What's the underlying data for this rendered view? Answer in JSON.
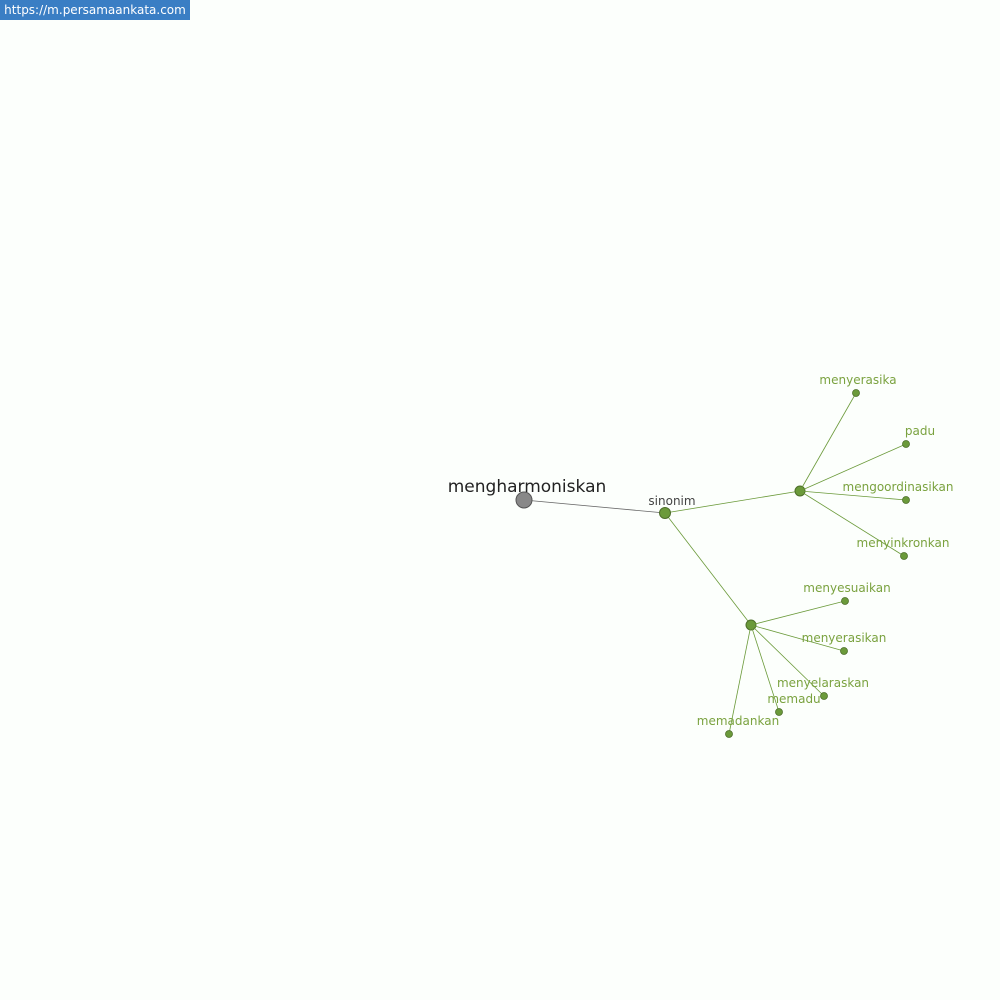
{
  "url": "https://m.persamaankata.com",
  "root": {
    "label": "mengharmoniskan"
  },
  "relation": {
    "label": "sinonim"
  },
  "groups": [
    [
      "menyerasika",
      "padu",
      "mengoordinasikan",
      "menyinkronkan"
    ],
    [
      "menyesuaikan",
      "menyerasikan",
      "menyelaraskan",
      "memadu",
      "memadankan"
    ]
  ]
}
